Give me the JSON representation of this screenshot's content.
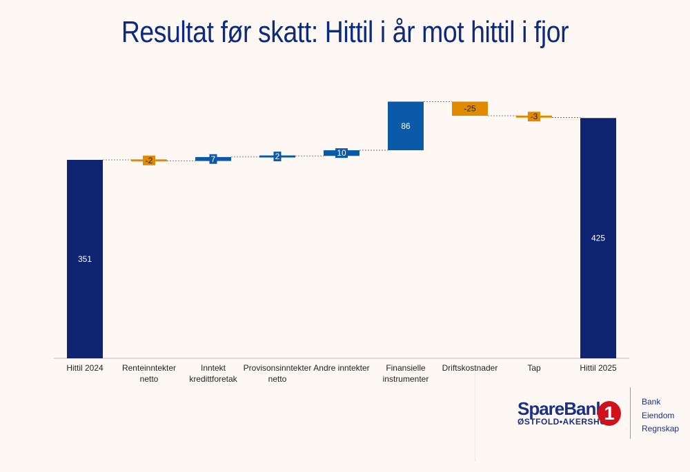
{
  "title": "Resultat før skatt: Hittil i år mot hittil i fjor",
  "chart_data": {
    "type": "waterfall",
    "title": "Resultat før skatt: Hittil i år mot hittil i fjor",
    "categories": [
      "Hittil 2024",
      "Renteinntekter netto",
      "Inntekt kredittforetak",
      "Provisonsinntekter netto",
      "Andre inntekter",
      "Finansielle instrumenter",
      "Driftskostnader",
      "Tap",
      "Hittil 2025"
    ],
    "category_lines": [
      [
        "Hittil 2024"
      ],
      [
        "Renteinntekter",
        "netto"
      ],
      [
        "Inntekt",
        "kredittforetak"
      ],
      [
        "Provisonsinntekter",
        "netto"
      ],
      [
        "Andre inntekter"
      ],
      [
        "Finansielle",
        "instrumenter"
      ],
      [
        "Driftskostnader"
      ],
      [
        "Tap"
      ],
      [
        "Hittil 2025"
      ]
    ],
    "values": [
      351,
      -2,
      7,
      2,
      10,
      86,
      -25,
      -3,
      425
    ],
    "labels": [
      "351",
      "-2",
      "7",
      "2",
      "10",
      "86",
      "-25",
      "-3",
      "425"
    ],
    "kinds": [
      "total",
      "delta",
      "delta",
      "delta",
      "delta",
      "delta",
      "delta",
      "delta",
      "total"
    ],
    "ylim": [
      0,
      470
    ],
    "colors": {
      "total": "#0e2470",
      "increase": "#0a5aa8",
      "decrease": "#e08a00"
    }
  },
  "logo": {
    "name": "SpareBank",
    "number": "1",
    "region": "ØSTFOLD•AKERSHUS",
    "tags": [
      "Bank",
      "Eiendom",
      "Regnskap"
    ]
  }
}
